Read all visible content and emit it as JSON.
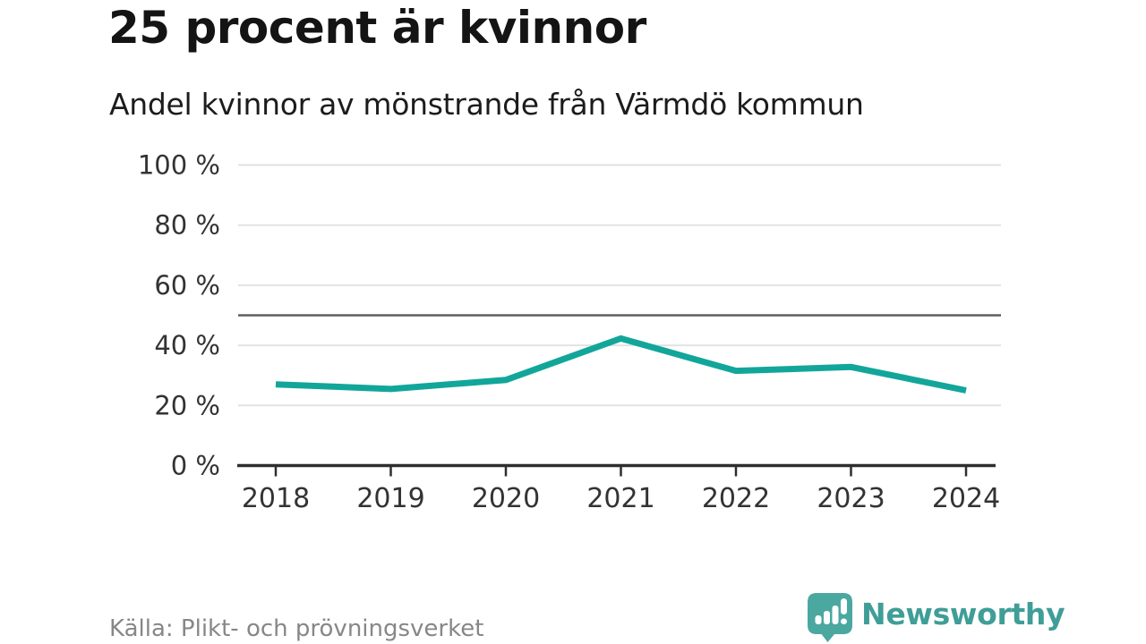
{
  "header": {
    "title": "25 procent är kvinnor",
    "subtitle": "Andel kvinnor av mönstrande från Värmdö kommun"
  },
  "footer": {
    "source": "Källa: Plikt- och prövningsverket",
    "brand_name": "Newsworthy",
    "logo_icon": "newsworthy-bubble-barchart-icon"
  },
  "colors": {
    "accent_line": "#12a69b",
    "grid": "#e2e2e2",
    "reference_line": "#5c6063",
    "axis": "#2e2e2e",
    "tick_label": "#333333",
    "title_text": "#141414",
    "source_text": "#878787",
    "brand_icon": "#4aa8a0",
    "brand_text": "#3f9e97",
    "logo_glyph": "#ffffff"
  },
  "chart_data": {
    "type": "line",
    "title": "25 procent är kvinnor",
    "subtitle": "Andel kvinnor av mönstrande från Värmdö kommun",
    "x": [
      2018,
      2019,
      2020,
      2021,
      2022,
      2023,
      2024
    ],
    "series": [
      {
        "name": "Andel kvinnor av mönstrande",
        "values": [
          27,
          25.5,
          28.5,
          42.3,
          31.5,
          32.8,
          25
        ]
      }
    ],
    "unit": "%",
    "ylim": [
      0,
      100
    ],
    "yticks": [
      0,
      20,
      40,
      60,
      80,
      100
    ],
    "ytick_suffix": " %",
    "reference_line": 50,
    "grid": "horizontal",
    "legend": "none",
    "line_color": "#12a69b",
    "source": "Källa: Plikt- och prövningsverket"
  }
}
